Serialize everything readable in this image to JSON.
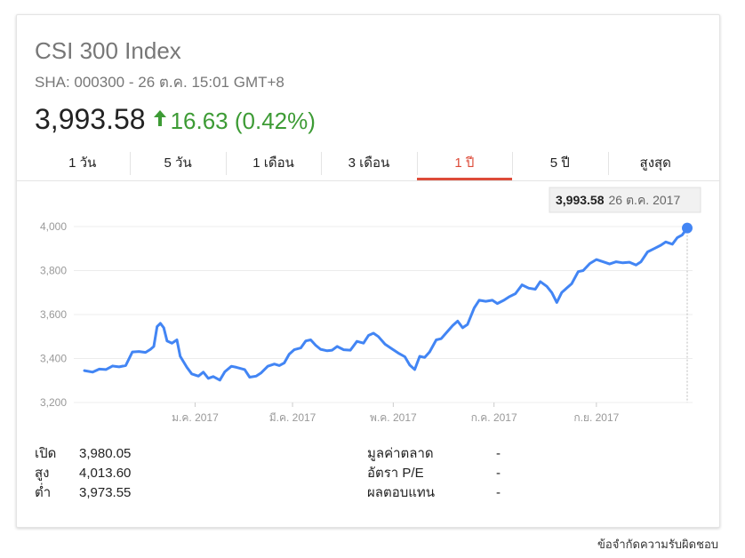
{
  "header": {
    "title": "CSI 300 Index",
    "subtitle": "SHA: 000300 - 26 ต.ค. 15:01 GMT+8",
    "price": "3,993.58",
    "change": "16.63 (0.42%)",
    "change_color": "#3d9b35"
  },
  "tabs": [
    {
      "label": "1 วัน",
      "active": false
    },
    {
      "label": "5 วัน",
      "active": false
    },
    {
      "label": "1 เดือน",
      "active": false
    },
    {
      "label": "3 เดือน",
      "active": false
    },
    {
      "label": "1 ปี",
      "active": true
    },
    {
      "label": "5 ปี",
      "active": false
    },
    {
      "label": "สูงสุด",
      "active": false
    }
  ],
  "tooltip": {
    "value": "3,993.58",
    "date": "26 ต.ค. 2017"
  },
  "chart_data": {
    "type": "line",
    "line_color": "#4285f4",
    "ylim": [
      3200,
      4000
    ],
    "y_ticks": [
      {
        "value": 4000,
        "label": "4,000"
      },
      {
        "value": 3800,
        "label": "3,800"
      },
      {
        "value": 3600,
        "label": "3,600"
      },
      {
        "value": 3400,
        "label": "3,400"
      },
      {
        "value": 3200,
        "label": "3,200"
      }
    ],
    "x_start": "2016-10-26",
    "x_end": "2017-10-26",
    "x_ticks": [
      {
        "date": "2017-01-01",
        "label": "ม.ค. 2017"
      },
      {
        "date": "2017-03-01",
        "label": "มี.ค. 2017"
      },
      {
        "date": "2017-05-01",
        "label": "พ.ค. 2017"
      },
      {
        "date": "2017-07-01",
        "label": "ก.ค. 2017"
      },
      {
        "date": "2017-09-01",
        "label": "ก.ย. 2017"
      }
    ],
    "grid": true,
    "series": [
      {
        "points": [
          [
            "2016-10-26",
            3345
          ],
          [
            "2016-10-31",
            3338
          ],
          [
            "2016-11-04",
            3352
          ],
          [
            "2016-11-08",
            3350
          ],
          [
            "2016-11-12",
            3366
          ],
          [
            "2016-11-16",
            3362
          ],
          [
            "2016-11-20",
            3368
          ],
          [
            "2016-11-24",
            3430
          ],
          [
            "2016-11-28",
            3432
          ],
          [
            "2016-12-02",
            3428
          ],
          [
            "2016-12-05",
            3442
          ],
          [
            "2016-12-07",
            3455
          ],
          [
            "2016-12-09",
            3545
          ],
          [
            "2016-12-11",
            3560
          ],
          [
            "2016-12-13",
            3540
          ],
          [
            "2016-12-15",
            3480
          ],
          [
            "2016-12-18",
            3470
          ],
          [
            "2016-12-21",
            3485
          ],
          [
            "2016-12-23",
            3410
          ],
          [
            "2016-12-27",
            3360
          ],
          [
            "2016-12-30",
            3330
          ],
          [
            "2017-01-03",
            3320
          ],
          [
            "2017-01-06",
            3338
          ],
          [
            "2017-01-09",
            3310
          ],
          [
            "2017-01-12",
            3318
          ],
          [
            "2017-01-16",
            3302
          ],
          [
            "2017-01-19",
            3340
          ],
          [
            "2017-01-23",
            3365
          ],
          [
            "2017-01-26",
            3360
          ],
          [
            "2017-01-31",
            3350
          ],
          [
            "2017-02-03",
            3315
          ],
          [
            "2017-02-07",
            3320
          ],
          [
            "2017-02-10",
            3335
          ],
          [
            "2017-02-14",
            3365
          ],
          [
            "2017-02-18",
            3375
          ],
          [
            "2017-02-21",
            3368
          ],
          [
            "2017-02-24",
            3380
          ],
          [
            "2017-02-27",
            3420
          ],
          [
            "2017-03-02",
            3440
          ],
          [
            "2017-03-06",
            3448
          ],
          [
            "2017-03-09",
            3480
          ],
          [
            "2017-03-12",
            3485
          ],
          [
            "2017-03-15",
            3460
          ],
          [
            "2017-03-18",
            3442
          ],
          [
            "2017-03-22",
            3435
          ],
          [
            "2017-03-25",
            3438
          ],
          [
            "2017-03-28",
            3455
          ],
          [
            "2017-04-01",
            3440
          ],
          [
            "2017-04-05",
            3438
          ],
          [
            "2017-04-09",
            3478
          ],
          [
            "2017-04-13",
            3470
          ],
          [
            "2017-04-16",
            3505
          ],
          [
            "2017-04-19",
            3515
          ],
          [
            "2017-04-22",
            3500
          ],
          [
            "2017-04-26",
            3465
          ],
          [
            "2017-04-30",
            3445
          ],
          [
            "2017-05-04",
            3425
          ],
          [
            "2017-05-08",
            3408
          ],
          [
            "2017-05-11",
            3370
          ],
          [
            "2017-05-14",
            3350
          ],
          [
            "2017-05-17",
            3410
          ],
          [
            "2017-05-20",
            3405
          ],
          [
            "2017-05-23",
            3430
          ],
          [
            "2017-05-27",
            3485
          ],
          [
            "2017-05-30",
            3490
          ],
          [
            "2017-06-03",
            3525
          ],
          [
            "2017-06-06",
            3550
          ],
          [
            "2017-06-09",
            3570
          ],
          [
            "2017-06-12",
            3540
          ],
          [
            "2017-06-15",
            3555
          ],
          [
            "2017-06-19",
            3630
          ],
          [
            "2017-06-22",
            3665
          ],
          [
            "2017-06-26",
            3660
          ],
          [
            "2017-06-30",
            3665
          ],
          [
            "2017-07-03",
            3650
          ],
          [
            "2017-07-07",
            3665
          ],
          [
            "2017-07-10",
            3680
          ],
          [
            "2017-07-14",
            3695
          ],
          [
            "2017-07-18",
            3735
          ],
          [
            "2017-07-22",
            3720
          ],
          [
            "2017-07-26",
            3715
          ],
          [
            "2017-07-29",
            3750
          ],
          [
            "2017-08-02",
            3728
          ],
          [
            "2017-08-05",
            3700
          ],
          [
            "2017-08-08",
            3655
          ],
          [
            "2017-08-11",
            3700
          ],
          [
            "2017-08-14",
            3720
          ],
          [
            "2017-08-17",
            3740
          ],
          [
            "2017-08-21",
            3795
          ],
          [
            "2017-08-24",
            3800
          ],
          [
            "2017-08-28",
            3832
          ],
          [
            "2017-09-01",
            3850
          ],
          [
            "2017-09-05",
            3840
          ],
          [
            "2017-09-09",
            3830
          ],
          [
            "2017-09-13",
            3840
          ],
          [
            "2017-09-17",
            3835
          ],
          [
            "2017-09-21",
            3838
          ],
          [
            "2017-09-25",
            3825
          ],
          [
            "2017-09-28",
            3840
          ],
          [
            "2017-10-02",
            3885
          ],
          [
            "2017-10-06",
            3900
          ],
          [
            "2017-10-10",
            3915
          ],
          [
            "2017-10-13",
            3930
          ],
          [
            "2017-10-17",
            3920
          ],
          [
            "2017-10-20",
            3950
          ],
          [
            "2017-10-23",
            3962
          ],
          [
            "2017-10-26",
            3993.58
          ]
        ]
      }
    ]
  },
  "stats": {
    "left": [
      {
        "label": "เปิด",
        "value": "3,980.05"
      },
      {
        "label": "สูง",
        "value": "4,013.60"
      },
      {
        "label": "ต่ำ",
        "value": "3,973.55"
      }
    ],
    "right": [
      {
        "label": "มูลค่าตลาด",
        "value": "-"
      },
      {
        "label": "อัตรา P/E",
        "value": "-"
      },
      {
        "label": "ผลตอบแทน",
        "value": "-"
      }
    ]
  },
  "footer": {
    "disclaimer": "ข้อจำกัดความรับผิดชอบ"
  }
}
